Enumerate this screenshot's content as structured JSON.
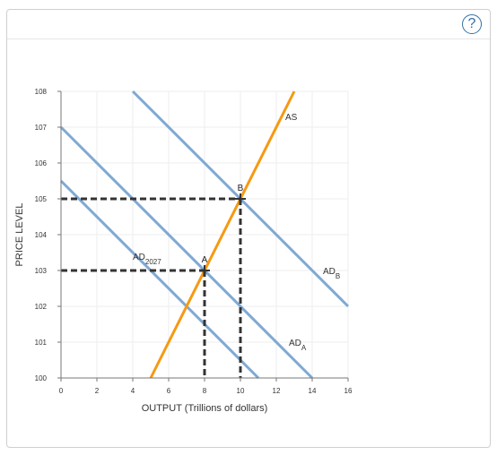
{
  "help_button": {
    "label": "?"
  },
  "chart_data": {
    "type": "line",
    "xlabel": "OUTPUT (Trillions of dollars)",
    "ylabel": "PRICE LEVEL",
    "xlim": [
      0,
      16
    ],
    "ylim": [
      100,
      108
    ],
    "x_ticks": [
      0,
      2,
      4,
      6,
      8,
      10,
      12,
      14,
      16
    ],
    "y_ticks": [
      100,
      101,
      102,
      103,
      104,
      105,
      106,
      107,
      108
    ],
    "grid": true,
    "colors": {
      "ad": "#7fa9d3",
      "as": "#f59a12",
      "guide": "#333333",
      "grid": "#eeeeee"
    },
    "series": [
      {
        "name": "AD",
        "label_sub": "2027",
        "kind": "ad",
        "points": [
          [
            0,
            105.5
          ],
          [
            11,
            100
          ]
        ]
      },
      {
        "name": "AD",
        "label_sub": "A",
        "kind": "ad",
        "points": [
          [
            0,
            107
          ],
          [
            14,
            100
          ]
        ]
      },
      {
        "name": "AD",
        "label_sub": "B",
        "kind": "ad",
        "points": [
          [
            4,
            108
          ],
          [
            16,
            102
          ]
        ]
      },
      {
        "name": "AS",
        "label_sub": "",
        "kind": "as",
        "points": [
          [
            5,
            100
          ],
          [
            13,
            108
          ]
        ]
      }
    ],
    "labels": [
      {
        "text": "AD",
        "sub": "2027",
        "x": 4,
        "y": 103.3
      },
      {
        "text": "AD",
        "sub": "A",
        "x": 12.7,
        "y": 100.9
      },
      {
        "text": "AD",
        "sub": "B",
        "x": 14.6,
        "y": 102.9
      },
      {
        "text": "AS",
        "sub": "",
        "x": 12.5,
        "y": 107.2
      }
    ],
    "points": [
      {
        "label": "A",
        "x": 8,
        "y": 103
      },
      {
        "label": "B",
        "x": 10,
        "y": 105
      }
    ]
  }
}
